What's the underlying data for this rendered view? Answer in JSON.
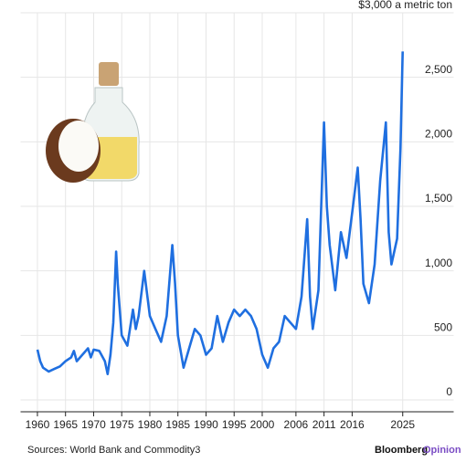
{
  "chart_data": {
    "type": "line",
    "x": [
      1960,
      1960.5,
      1961,
      1962,
      1963,
      1964,
      1965,
      1966,
      1966.5,
      1967,
      1968,
      1969,
      1969.5,
      1970,
      1971,
      1972,
      1972.5,
      1973,
      1973.5,
      1974,
      1974.3,
      1975,
      1976,
      1977,
      1977.5,
      1978,
      1979,
      1980,
      1981,
      1982,
      1983,
      1984,
      1984.5,
      1985,
      1986,
      1987,
      1988,
      1989,
      1990,
      1991,
      1992,
      1993,
      1994,
      1995,
      1996,
      1997,
      1998,
      1999,
      2000,
      2001,
      2002,
      2003,
      2004,
      2005,
      2006,
      2007,
      2008,
      2008.5,
      2009,
      2010,
      2011,
      2011.5,
      2012,
      2013,
      2014,
      2015,
      2016,
      2017,
      2017.5,
      2018,
      2019,
      2020,
      2021,
      2022,
      2022.5,
      2023,
      2024,
      2024.6,
      2025
    ],
    "series": [
      {
        "color": "#1f6fe0",
        "values": [
          390,
          300,
          250,
          220,
          240,
          260,
          300,
          330,
          380,
          300,
          350,
          400,
          330,
          390,
          380,
          300,
          200,
          350,
          600,
          1150,
          900,
          500,
          420,
          700,
          550,
          650,
          1000,
          650,
          550,
          450,
          650,
          1200,
          900,
          500,
          250,
          400,
          550,
          500,
          350,
          400,
          650,
          450,
          600,
          700,
          650,
          700,
          650,
          550,
          350,
          250,
          400,
          450,
          650,
          600,
          550,
          800,
          1400,
          800,
          550,
          850,
          2150,
          1500,
          1200,
          850,
          1300,
          1100,
          1450,
          1800,
          1400,
          900,
          750,
          1050,
          1700,
          2150,
          1300,
          1050,
          1250,
          1950,
          2700
        ]
      }
    ],
    "xlim": [
      1957,
      2030
    ],
    "xticks": [
      1960,
      1965,
      1970,
      1975,
      1980,
      1985,
      1990,
      1995,
      2000,
      2006,
      2011,
      2016,
      2025
    ],
    "ylim": [
      0,
      3000
    ],
    "yticks": [
      0,
      500,
      {
        "value": 1000,
        "label": "1,000"
      },
      {
        "value": 1500,
        "label": "1,500"
      },
      {
        "value": 2000,
        "label": "2,000"
      },
      {
        "value": 2500,
        "label": "2,500"
      },
      {
        "value": 3000,
        "label": "$3,000 a metric ton"
      }
    ],
    "grid": true,
    "source": "Sources: World Bank and Commodity3",
    "brand": [
      "Bloomberg",
      "Opinion"
    ]
  }
}
